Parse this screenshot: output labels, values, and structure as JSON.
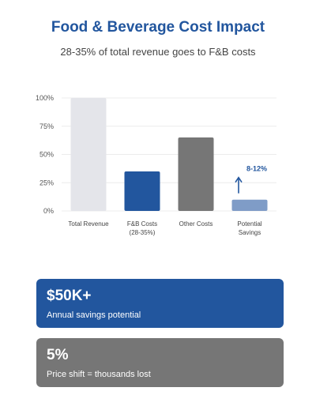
{
  "header": {
    "title": "Food & Beverage Cost Impact",
    "subtitle": "28-35% of total revenue goes to F&B costs"
  },
  "chart_data": {
    "type": "bar",
    "categories": [
      [
        "Total Revenue"
      ],
      [
        "F&B Costs",
        "(28-35%)"
      ],
      [
        "Other Costs"
      ],
      [
        "Potential",
        "Savings"
      ]
    ],
    "values": [
      100,
      35,
      65,
      10
    ],
    "colors": [
      "#e4e5ea",
      "#22569e",
      "#767676",
      "#7f9cc7"
    ],
    "ylim": [
      0,
      100
    ],
    "yticks": [
      0,
      25,
      50,
      75,
      100
    ],
    "ytick_labels": [
      "0%",
      "25%",
      "50%",
      "75%",
      "100%"
    ],
    "annotation": {
      "text": "8-12%",
      "target": "Potential Savings",
      "color": "#22569e"
    },
    "grid": true
  },
  "cards": [
    {
      "value": "$50K+",
      "label": "Annual savings potential",
      "color": "#22569e"
    },
    {
      "value": "5%",
      "label": "Price shift = thousands lost",
      "color": "#767676"
    }
  ]
}
